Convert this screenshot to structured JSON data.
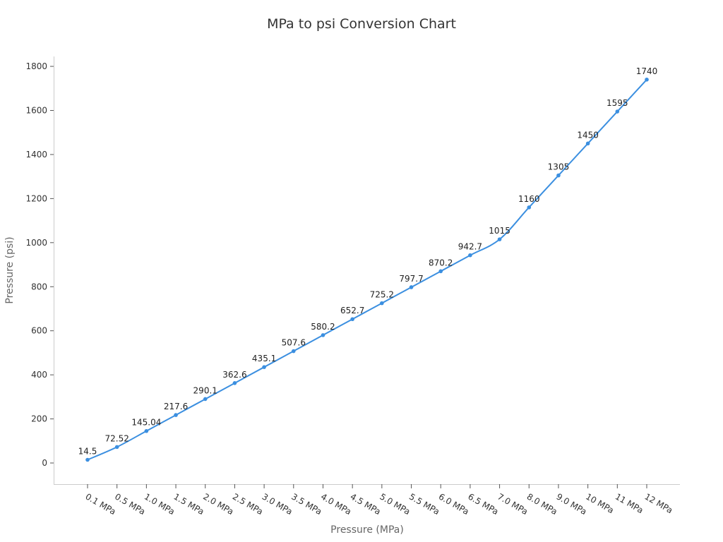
{
  "chart_data": {
    "type": "line",
    "title": "MPa to psi Conversion Chart",
    "xlabel": "Pressure (MPa)",
    "ylabel": "Pressure (psi)",
    "categories": [
      "0.1 MPa",
      "0.5 MPa",
      "1.0 MPa",
      "1.5 MPa",
      "2.0 MPa",
      "2.5 MPa",
      "3.0 MPa",
      "3.5 MPa",
      "4.0 MPa",
      "4.5 MPa",
      "5.0 MPa",
      "5.5 MPa",
      "6.0 MPa",
      "6.5 MPa",
      "7.0 MPa",
      "8.0 MPa",
      "9.0 MPa",
      "10 MPa",
      "11 MPa",
      "12 MPa"
    ],
    "values": [
      14.5,
      72.52,
      145.04,
      217.6,
      290.1,
      362.6,
      435.1,
      507.6,
      580.2,
      652.7,
      725.2,
      797.7,
      870.2,
      942.7,
      1015,
      1160,
      1305,
      1450,
      1595,
      1740
    ],
    "data_labels": [
      "14.5",
      "72.52",
      "145.04",
      "217.6",
      "290.1",
      "362.6",
      "435.1",
      "507.6",
      "580.2",
      "652.7",
      "725.2",
      "797.7",
      "870.2",
      "942.7",
      "1015",
      "1160",
      "1305",
      "1450",
      "1595",
      "1740"
    ],
    "yticks": [
      0,
      200,
      400,
      600,
      800,
      1000,
      1200,
      1400,
      1600,
      1800
    ],
    "ylim": [
      -96,
      1845
    ],
    "grid": false,
    "legend": "none",
    "line_color": "#3b8fe0"
  }
}
